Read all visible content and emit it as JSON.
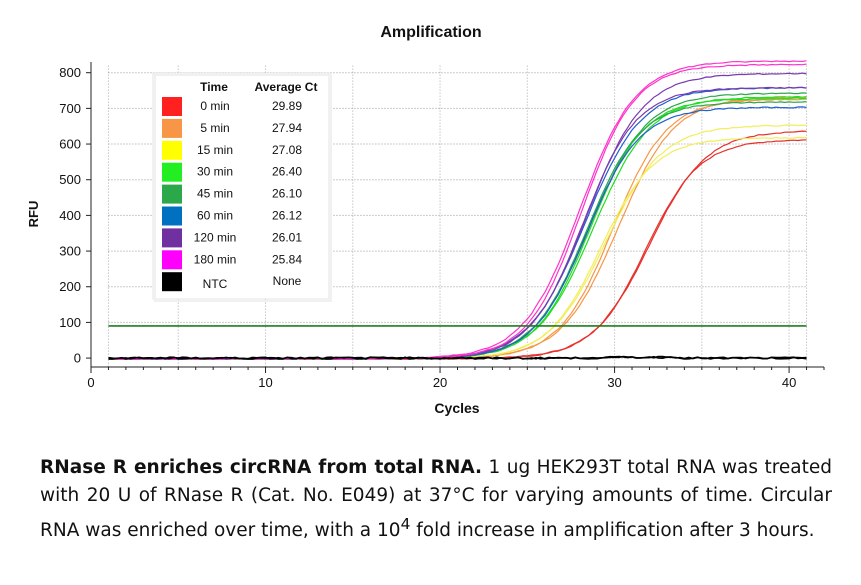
{
  "chart_data": {
    "type": "line",
    "title": "Amplification",
    "xlabel": "Cycles",
    "ylabel": "RFU",
    "xlim": [
      0,
      42
    ],
    "ylim": [
      -25,
      830
    ],
    "xticks": [
      0,
      10,
      20,
      30,
      40
    ],
    "yticks": [
      0,
      100,
      200,
      300,
      400,
      500,
      600,
      700,
      800
    ],
    "grid": true,
    "threshold": 90,
    "threshold_color": "#1e7d1e",
    "legend": {
      "placement": "top-left",
      "header_sample": "Time",
      "header_ct": "Average Ct",
      "entries": [
        {
          "label": "0 min",
          "ct": "29.89",
          "color": "#ff2020"
        },
        {
          "label": "5 min",
          "ct": "27.94",
          "color": "#f79646"
        },
        {
          "label": "15 min",
          "ct": "27.08",
          "color": "#ffff00"
        },
        {
          "label": "30 min",
          "ct": "26.40",
          "color": "#22ee22"
        },
        {
          "label": "45 min",
          "ct": "26.10",
          "color": "#2aa84a"
        },
        {
          "label": "60 min",
          "ct": "26.12",
          "color": "#0070c0"
        },
        {
          "label": "120 min",
          "ct": "26.01",
          "color": "#7030a0"
        },
        {
          "label": "180 min",
          "ct": "25.84",
          "color": "#ff00ff"
        },
        {
          "label": "NTC",
          "ct": "None",
          "color": "#000000"
        }
      ]
    },
    "x": [
      1,
      41
    ],
    "series": [
      {
        "color": "#ff2020",
        "line_color": "#e8302a",
        "plateaus": [
          640,
          615
        ],
        "midpoints": [
          32.0,
          31.8
        ]
      },
      {
        "color": "#f79646",
        "line_color": "#f79646",
        "plateaus": [
          735,
          728
        ],
        "midpoints": [
          30.2,
          29.9
        ]
      },
      {
        "color": "#ffff00",
        "line_color": "#f2ee5a",
        "plateaus": [
          655,
          620
        ],
        "midpoints": [
          29.5,
          29.2
        ]
      },
      {
        "color": "#22ee22",
        "line_color": "#22dd22",
        "plateaus": [
          735,
          730
        ],
        "midpoints": [
          28.8,
          28.6
        ]
      },
      {
        "color": "#2aa84a",
        "line_color": "#2aa84a",
        "plateaus": [
          745,
          720
        ],
        "midpoints": [
          28.6,
          28.4
        ]
      },
      {
        "color": "#0070c0",
        "line_color": "#1f5fd0",
        "plateaus": [
          760,
          705
        ],
        "midpoints": [
          28.3,
          28.4
        ]
      },
      {
        "color": "#7030a0",
        "line_color": "#7a3ab0",
        "plateaus": [
          800,
          760
        ],
        "midpoints": [
          28.4,
          28.2
        ]
      },
      {
        "color": "#ff00ff",
        "line_color": "#ff33cc",
        "plateaus": [
          835,
          825
        ],
        "midpoints": [
          28.0,
          28.1
        ]
      },
      {
        "color": "#000000",
        "line_color": "#000000",
        "plateaus": [
          0,
          0
        ],
        "midpoints": [
          0,
          0
        ]
      }
    ]
  },
  "caption": {
    "bold": "RNase R enriches circRNA from total RNA.",
    "text_1": " 1 ug HEK293T total RNA was treated with 20 U of RNase R (Cat. No. E049) at 37°C for varying amounts of time. Circular RNA was enriched over time, with a 10",
    "sup": "4",
    "text_2": " fold increase in amplification after 3 hours."
  }
}
